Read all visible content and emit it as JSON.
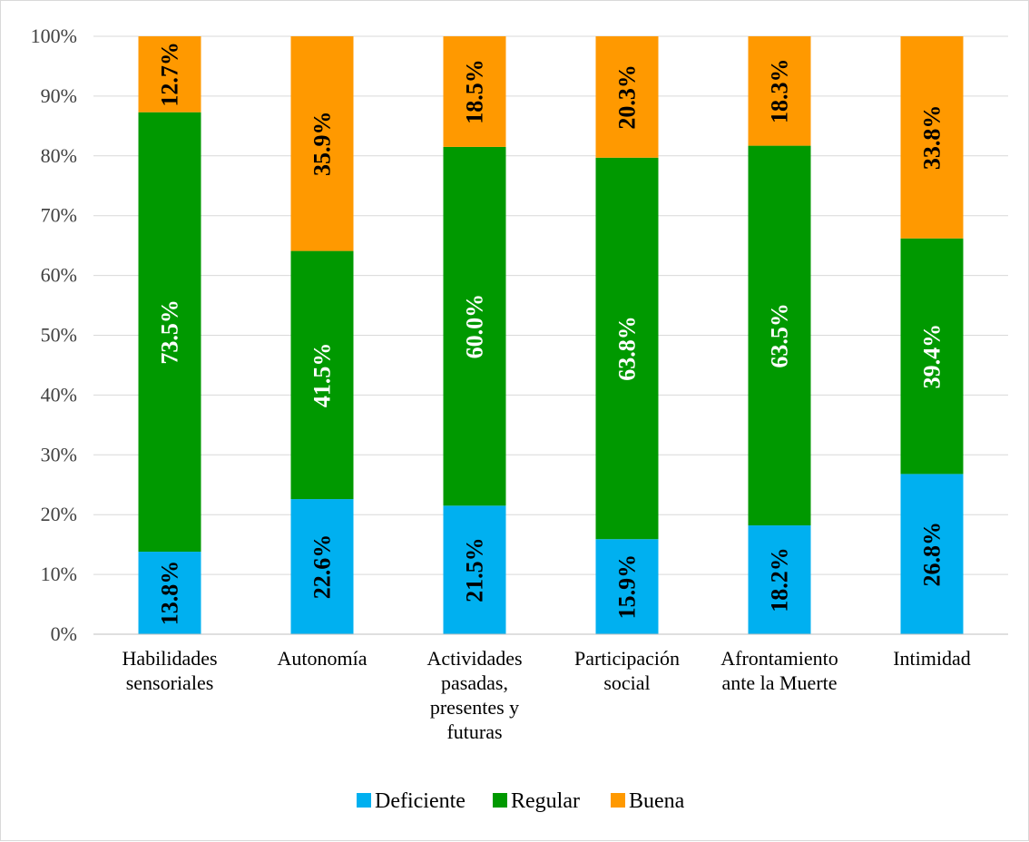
{
  "chart_data": {
    "type": "bar",
    "stacked": true,
    "percent": true,
    "title": "",
    "xlabel": "",
    "ylabel": "",
    "ylim": [
      0,
      100
    ],
    "yticks": [
      "0%",
      "10%",
      "20%",
      "30%",
      "40%",
      "50%",
      "60%",
      "70%",
      "80%",
      "90%",
      "100%"
    ],
    "grid": true,
    "legend_position": "bottom",
    "categories": [
      [
        "Habilidades",
        "sensoriales"
      ],
      [
        "Autonomía"
      ],
      [
        "Actividades",
        "pasadas,",
        "presentes y",
        "futuras"
      ],
      [
        "Participación",
        "social"
      ],
      [
        "Afrontamiento",
        "ante la Muerte"
      ],
      [
        "Intimidad"
      ]
    ],
    "series": [
      {
        "name": "Deficiente",
        "color": "#00B0F0",
        "label_color": "#000000",
        "values": [
          13.8,
          22.6,
          21.5,
          15.9,
          18.2,
          26.8
        ],
        "labels": [
          "13.8%",
          "22.6%",
          "21.5%",
          "15.9%",
          "18.2%",
          "26.8%"
        ]
      },
      {
        "name": "Regular",
        "color": "#009900",
        "label_color": "#ffffff",
        "values": [
          73.5,
          41.5,
          60.0,
          63.8,
          63.5,
          39.4
        ],
        "labels": [
          "73.5%",
          "41.5%",
          "60.0%",
          "63.8%",
          "63.5%",
          "39.4%"
        ]
      },
      {
        "name": "Buena",
        "color": "#FF9900",
        "label_color": "#000000",
        "values": [
          12.7,
          35.9,
          18.5,
          20.3,
          18.3,
          33.8
        ],
        "labels": [
          "12.7%",
          "35.9%",
          "18.5%",
          "20.3%",
          "18.3%",
          "33.8%"
        ]
      }
    ],
    "gridline_color": "#d9d9d9",
    "axis_color": "#bfbfbf"
  }
}
